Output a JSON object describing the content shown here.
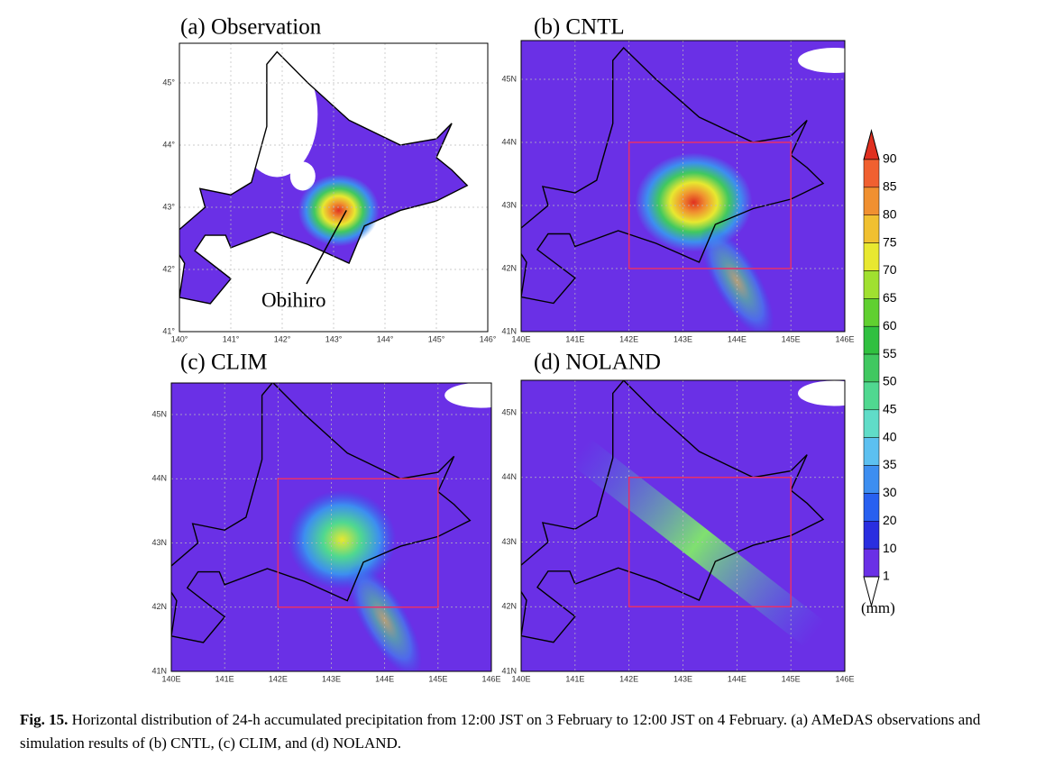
{
  "panels": [
    {
      "title": "(a) Observation",
      "xticks": [
        "140°",
        "141°",
        "142°",
        "143°",
        "144°",
        "145°",
        "146°"
      ],
      "yticks": [
        "45°",
        "44°",
        "43°",
        "42°",
        "41°"
      ],
      "annotation": "Obihiro"
    },
    {
      "title": "(b) CNTL",
      "xticks": [
        "140E",
        "141E",
        "142E",
        "143E",
        "144E",
        "145E",
        "146E"
      ],
      "yticks": [
        "45N",
        "44N",
        "43N",
        "42N",
        "41N"
      ]
    },
    {
      "title": "(c) CLIM",
      "xticks": [
        "140E",
        "141E",
        "142E",
        "143E",
        "144E",
        "145E",
        "146E"
      ],
      "yticks": [
        "45N",
        "44N",
        "43N",
        "42N",
        "41N"
      ]
    },
    {
      "title": "(d) NOLAND",
      "xticks": [
        "140E",
        "141E",
        "142E",
        "143E",
        "144E",
        "145E",
        "146E"
      ],
      "yticks": [
        "45N",
        "44N",
        "43N",
        "42N",
        "41N"
      ]
    }
  ],
  "colorbar": {
    "labels": [
      90,
      85,
      80,
      75,
      70,
      65,
      60,
      55,
      50,
      45,
      40,
      35,
      30,
      20,
      10,
      1
    ],
    "unit": "(mm)"
  },
  "caption": {
    "label": "Fig. 15.",
    "text": "Horizontal distribution of 24-h accumulated precipitation from 12:00 JST on 3 February to 12:00 JST on 4 February. (a) AMeDAS observations and simulation results of (b) CNTL, (c) CLIM, and (d) NOLAND."
  }
}
